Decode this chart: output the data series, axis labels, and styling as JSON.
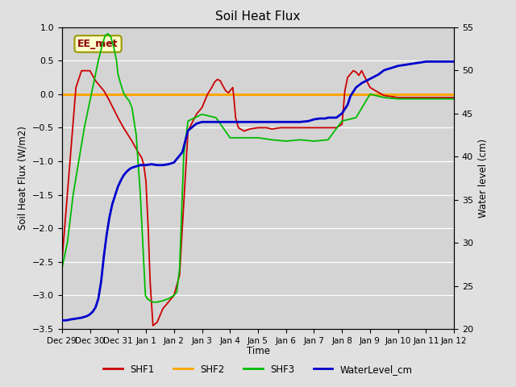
{
  "title": "Soil Heat Flux",
  "xlabel": "Time",
  "ylabel_left": "Soil Heat Flux (W/m2)",
  "ylabel_right": "Water level (cm)",
  "ylim_left": [
    -3.5,
    1.0
  ],
  "ylim_right": [
    20,
    55
  ],
  "annotation": "EE_met",
  "fig_bg": "#e0e0e0",
  "plot_bg": "#d4d4d4",
  "shf1_color": "#cc0000",
  "shf2_color": "#ffa500",
  "shf3_color": "#00bb00",
  "wl_color": "#0000cc",
  "x_tick_labels": [
    "Dec 29",
    "Dec 30",
    "Dec 31",
    "Jan 1",
    "Jan 2",
    "Jan 3",
    "Jan 4",
    "Jan 5",
    "Jan 6",
    "Jan 7",
    "Jan 8",
    "Jan 9",
    "Jan 10",
    "Jan 11",
    "Jan 12"
  ],
  "shf1_x": [
    0.0,
    0.25,
    0.5,
    0.7,
    1.0,
    1.2,
    1.5,
    1.7,
    2.0,
    2.2,
    2.5,
    2.7,
    2.85,
    2.92,
    3.0,
    3.08,
    3.15,
    3.25,
    3.4,
    3.6,
    3.8,
    4.0,
    4.2,
    4.5,
    4.8,
    5.0,
    5.2,
    5.35,
    5.45,
    5.55,
    5.65,
    5.75,
    5.85,
    5.95,
    6.0,
    6.1,
    6.15,
    6.2,
    6.3,
    6.5,
    6.7,
    7.0,
    7.3,
    7.5,
    7.8,
    8.0,
    8.3,
    8.5,
    8.8,
    9.0,
    9.3,
    9.5,
    9.8,
    10.0,
    10.1,
    10.15,
    10.2,
    10.3,
    10.4,
    10.5,
    10.6,
    10.7,
    11.0,
    11.2,
    11.5,
    12.0,
    13.0,
    14.0
  ],
  "shf1_y": [
    -2.5,
    -1.2,
    0.1,
    0.35,
    0.35,
    0.2,
    0.05,
    -0.1,
    -0.35,
    -0.5,
    -0.7,
    -0.85,
    -0.95,
    -1.05,
    -1.3,
    -2.0,
    -2.8,
    -3.45,
    -3.4,
    -3.2,
    -3.1,
    -3.0,
    -2.7,
    -0.55,
    -0.3,
    -0.2,
    0.0,
    0.1,
    0.18,
    0.22,
    0.2,
    0.12,
    0.05,
    0.02,
    0.05,
    0.1,
    -0.1,
    -0.35,
    -0.5,
    -0.55,
    -0.52,
    -0.5,
    -0.5,
    -0.52,
    -0.5,
    -0.5,
    -0.5,
    -0.5,
    -0.5,
    -0.5,
    -0.5,
    -0.5,
    -0.5,
    -0.45,
    0.05,
    0.15,
    0.25,
    0.3,
    0.35,
    0.33,
    0.28,
    0.35,
    0.1,
    0.05,
    -0.02,
    -0.05,
    -0.05,
    -0.05
  ],
  "shf3_x": [
    0.0,
    0.2,
    0.4,
    0.6,
    0.8,
    1.0,
    1.15,
    1.3,
    1.45,
    1.55,
    1.65,
    1.75,
    1.85,
    1.95,
    2.0,
    2.1,
    2.2,
    2.3,
    2.4,
    2.5,
    2.65,
    2.8,
    2.92,
    2.98,
    3.05,
    3.15,
    3.25,
    3.4,
    3.6,
    3.8,
    4.0,
    4.1,
    4.2,
    4.35,
    4.5,
    5.0,
    5.5,
    6.0,
    6.5,
    7.0,
    7.5,
    8.0,
    8.5,
    9.0,
    9.5,
    10.0,
    10.5,
    11.0,
    11.5,
    12.0,
    13.0,
    14.0
  ],
  "shf3_y": [
    -2.6,
    -2.2,
    -1.5,
    -1.0,
    -0.5,
    -0.1,
    0.2,
    0.5,
    0.75,
    0.88,
    0.9,
    0.85,
    0.7,
    0.5,
    0.3,
    0.15,
    0.02,
    -0.05,
    -0.1,
    -0.2,
    -0.6,
    -1.5,
    -2.5,
    -3.0,
    -3.05,
    -3.08,
    -3.1,
    -3.1,
    -3.08,
    -3.05,
    -3.0,
    -2.95,
    -2.6,
    -0.9,
    -0.4,
    -0.3,
    -0.35,
    -0.65,
    -0.65,
    -0.65,
    -0.68,
    -0.7,
    -0.68,
    -0.7,
    -0.68,
    -0.4,
    -0.35,
    0.0,
    -0.05,
    -0.07,
    -0.07,
    -0.07
  ],
  "wl_x": [
    0.0,
    0.15,
    0.3,
    0.5,
    0.7,
    0.9,
    1.0,
    1.1,
    1.2,
    1.3,
    1.4,
    1.5,
    1.6,
    1.7,
    1.8,
    1.9,
    2.0,
    2.1,
    2.2,
    2.3,
    2.4,
    2.5,
    2.6,
    2.7,
    2.8,
    3.0,
    3.2,
    3.4,
    3.6,
    3.8,
    4.0,
    4.3,
    4.5,
    4.8,
    5.0,
    5.3,
    5.6,
    6.0,
    6.3,
    6.5,
    6.8,
    7.0,
    7.3,
    7.5,
    7.8,
    8.0,
    8.3,
    8.5,
    8.8,
    9.0,
    9.2,
    9.4,
    9.5,
    9.6,
    9.8,
    10.0,
    10.2,
    10.3,
    10.5,
    10.7,
    11.0,
    11.3,
    11.5,
    12.0,
    13.0,
    14.0
  ],
  "wl_y": [
    21.0,
    21.0,
    21.1,
    21.2,
    21.3,
    21.5,
    21.7,
    22.0,
    22.5,
    23.5,
    25.5,
    28.5,
    31.0,
    33.0,
    34.5,
    35.5,
    36.5,
    37.2,
    37.8,
    38.2,
    38.5,
    38.7,
    38.8,
    38.9,
    39.0,
    39.0,
    39.1,
    39.0,
    39.0,
    39.1,
    39.3,
    40.5,
    43.0,
    43.8,
    44.0,
    44.0,
    44.0,
    44.0,
    44.0,
    44.0,
    44.0,
    44.0,
    44.0,
    44.0,
    44.0,
    44.0,
    44.0,
    44.0,
    44.1,
    44.3,
    44.4,
    44.4,
    44.5,
    44.5,
    44.5,
    45.0,
    46.0,
    47.0,
    48.0,
    48.5,
    49.0,
    49.5,
    50.0,
    50.5,
    51.0,
    51.0
  ]
}
